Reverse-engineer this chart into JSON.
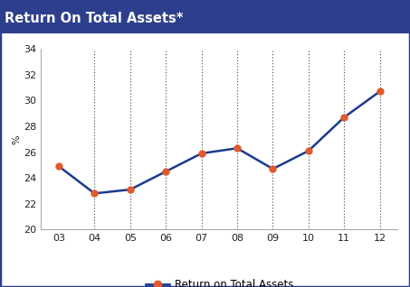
{
  "title": "Return On Total Assets*",
  "title_bg_color": "#2d3f8c",
  "title_text_color": "#ffffff",
  "ylabel": "%",
  "years": [
    "03",
    "04",
    "05",
    "06",
    "07",
    "08",
    "09",
    "10",
    "11",
    "12"
  ],
  "values": [
    24.9,
    22.8,
    23.1,
    24.5,
    25.9,
    26.3,
    24.7,
    26.1,
    28.7,
    30.7
  ],
  "line_color": "#1a3a8c",
  "marker_color": "#e05a2b",
  "marker_size": 5,
  "line_width": 1.8,
  "ylim": [
    20,
    34
  ],
  "yticks": [
    20,
    22,
    24,
    26,
    28,
    30,
    32,
    34
  ],
  "legend_label": "Return on Total Assets",
  "plot_bg_color": "#ffffff",
  "outer_bg_color": "#ffffff",
  "border_color": "#2d3f8c",
  "grid_color": "#444444",
  "axis_color": "#aaaaaa",
  "tick_label_color": "#222222",
  "title_fontsize": 10.5,
  "tick_fontsize": 8,
  "ylabel_fontsize": 8,
  "legend_fontsize": 8.5
}
